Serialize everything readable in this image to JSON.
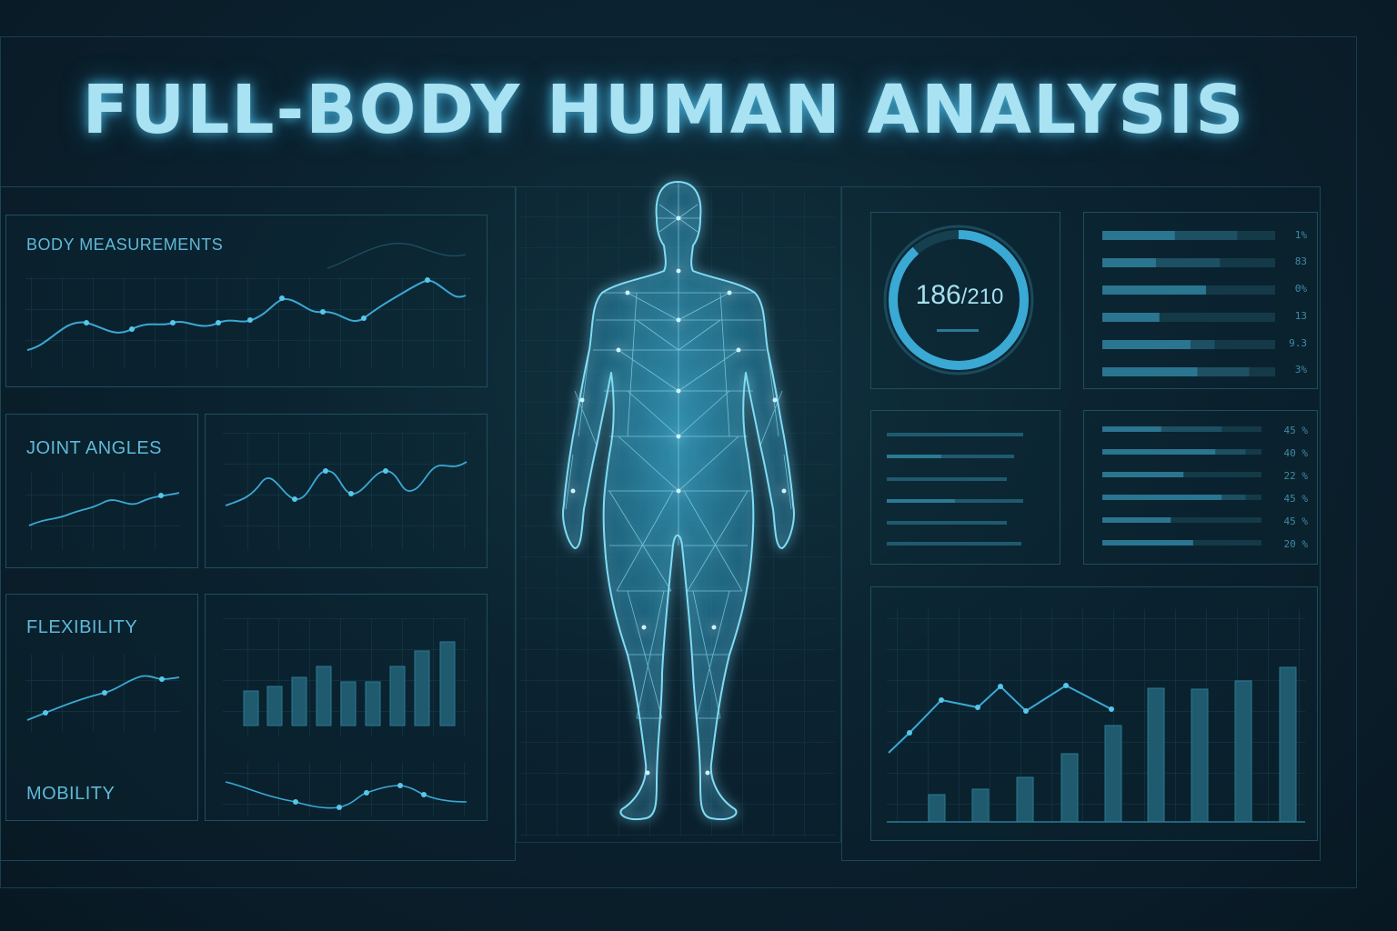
{
  "title": "FULL-BODY HUMAN ANALYSIS",
  "sections": {
    "body_measurements": "BODY MEASUREMENTS",
    "joint_angles": "JOINT ANGLES",
    "flexibility": "FLEXIBILITY",
    "mobility": "MOBILITY"
  },
  "gauge": {
    "value": "186",
    "max": "/210",
    "fraction": 0.886
  },
  "stats_a": [
    {
      "label": "1%",
      "fill": 0.42,
      "fill2": 0.78
    },
    {
      "label": "83",
      "fill": 0.31,
      "fill2": 0.68
    },
    {
      "label": "0%",
      "fill": 0.6,
      "fill2": 0.6
    },
    {
      "label": "13",
      "fill": 0.33,
      "fill2": 0.33
    },
    {
      "label": "9.3",
      "fill": 0.51,
      "fill2": 0.65
    },
    {
      "label": "3%",
      "fill": 0.55,
      "fill2": 0.85
    }
  ],
  "stats_b": [
    {
      "label": "45 %",
      "fill": 0.37,
      "fill2": 0.75
    },
    {
      "label": "40 %",
      "fill": 0.71,
      "fill2": 0.9
    },
    {
      "label": "22 %",
      "fill": 0.51,
      "fill2": 0.51
    },
    {
      "label": "45 %",
      "fill": 0.75,
      "fill2": 0.9
    },
    {
      "label": "45 %",
      "fill": 0.43,
      "fill2": 0.43
    },
    {
      "label": "20 %",
      "fill": 0.57,
      "fill2": 0.57
    }
  ],
  "colors": {
    "accent": "#3aa9d4",
    "glow": "#57c7ea",
    "panel_border": "#1f4e5f",
    "bar": "#1f5a6e"
  }
}
